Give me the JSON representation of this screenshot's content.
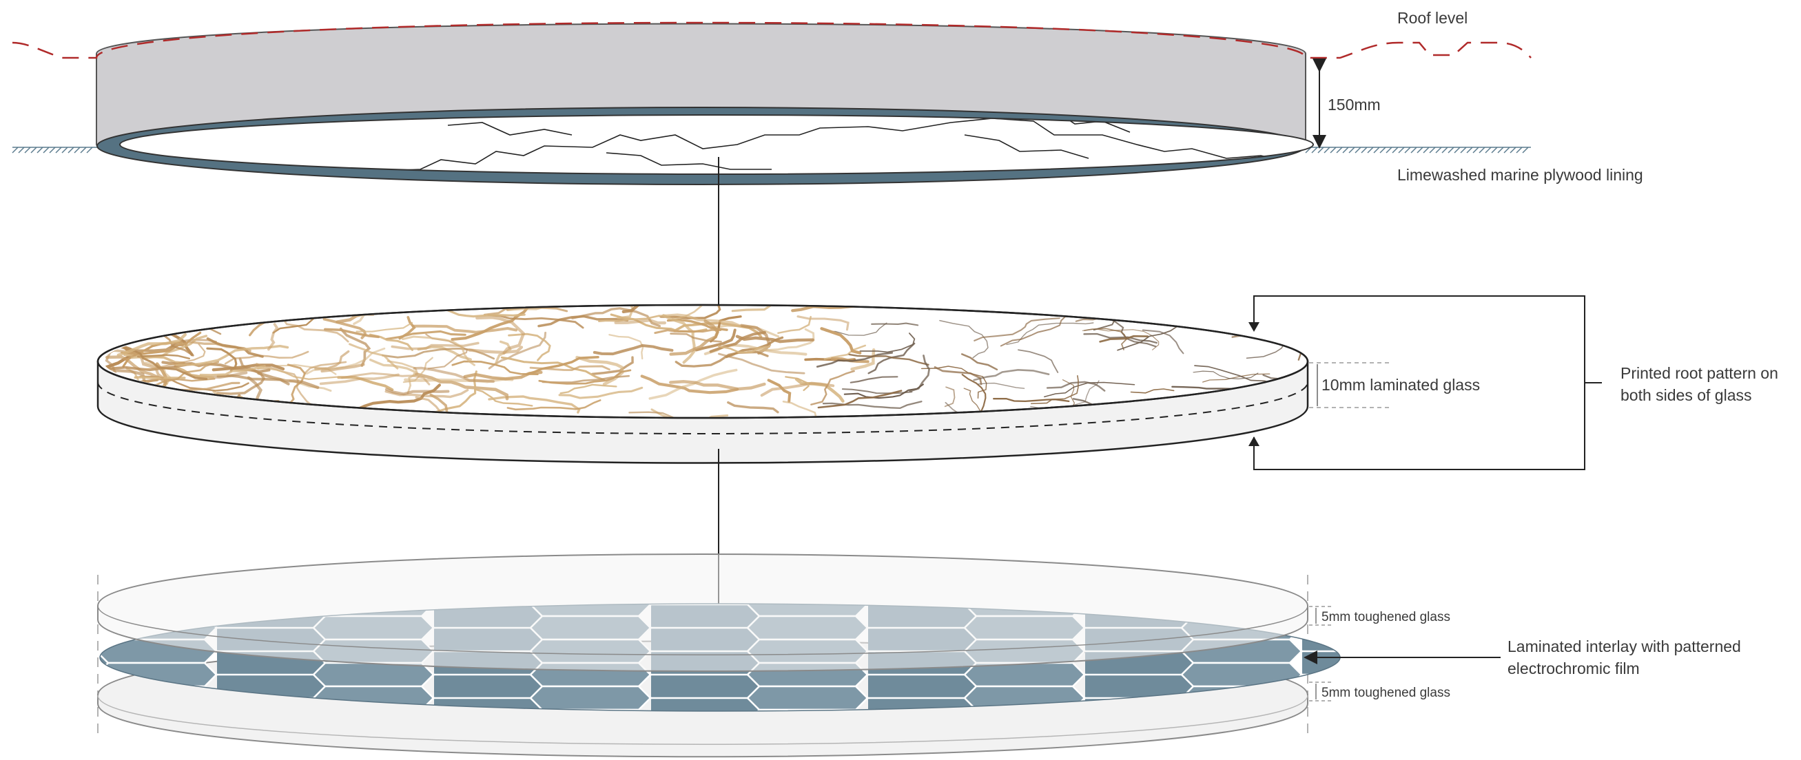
{
  "labels": {
    "roof_level": "Roof level",
    "dim_150": "150mm",
    "plywood_lining": "Limewashed marine plywood lining",
    "glass_10mm": "10mm laminated glass",
    "printed_root_line1": "Printed root pattern on",
    "printed_root_line2": "both sides of glass",
    "toughened_top": "5mm toughened glass",
    "toughened_bottom": "5mm toughened glass",
    "interlay_line1": "Laminated interlay with patterned",
    "interlay_line2": "electrochromic film"
  },
  "colors": {
    "roof_dash": "#b02a2a",
    "upstand_grey": "#cfced1",
    "plywood_ring": "#557282",
    "hex_film": "#6f8b9b",
    "glass_fill": "#f4f4f4",
    "root_tone": "#c9a06a",
    "hatch": "#5c7c8e"
  }
}
